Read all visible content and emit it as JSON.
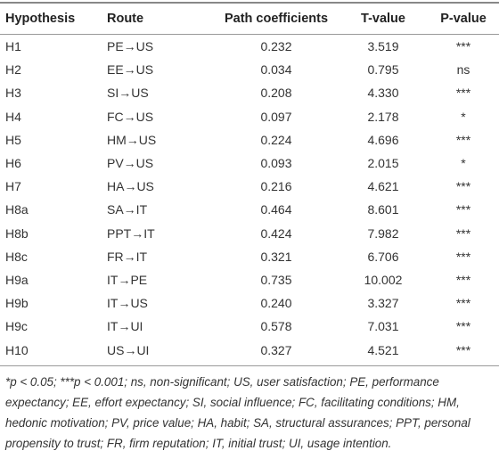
{
  "table": {
    "header": [
      "Hypothesis",
      "Route",
      "Path coefficients",
      "T-value",
      "P-value"
    ],
    "rows": [
      [
        "H1",
        "PE→US",
        "0.232",
        "3.519",
        "***"
      ],
      [
        "H2",
        "EE→US",
        "0.034",
        "0.795",
        "ns"
      ],
      [
        "H3",
        "SI→US",
        "0.208",
        "4.330",
        "***"
      ],
      [
        "H4",
        "FC→US",
        "0.097",
        "2.178",
        "*"
      ],
      [
        "H5",
        "HM→US",
        "0.224",
        "4.696",
        "***"
      ],
      [
        "H6",
        "PV→US",
        "0.093",
        "2.015",
        "*"
      ],
      [
        "H7",
        "HA→US",
        "0.216",
        "4.621",
        "***"
      ],
      [
        "H8a",
        "SA→IT",
        "0.464",
        "8.601",
        "***"
      ],
      [
        "H8b",
        "PPT→IT",
        "0.424",
        "7.982",
        "***"
      ],
      [
        "H8c",
        "FR→IT",
        "0.321",
        "6.706",
        "***"
      ],
      [
        "H9a",
        "IT→PE",
        "0.735",
        "10.002",
        "***"
      ],
      [
        "H9b",
        "IT→US",
        "0.240",
        "3.327",
        "***"
      ],
      [
        "H9c",
        "IT→UI",
        "0.578",
        "7.031",
        "***"
      ],
      [
        "H10",
        "US→UI",
        "0.327",
        "4.521",
        "***"
      ]
    ],
    "footnote": "*p < 0.05; ***p < 0.001; ns, non-significant; US, user satisfaction; PE, performance expectancy; EE, effort expectancy; SI, social influence; FC, facilitating conditions; HM, hedonic motivation; PV, price value; HA, habit; SA, structural assurances; PPT, personal propensity to trust; FR, firm reputation; IT, initial trust; UI, usage intention."
  }
}
